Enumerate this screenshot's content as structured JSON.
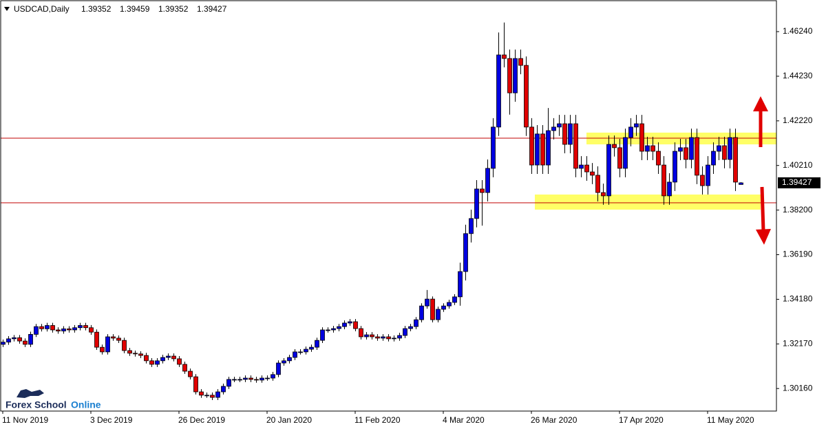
{
  "chart_data": {
    "type": "candlestick",
    "title": "USDCAD,Daily",
    "categories": [
      "11 Nov 2019",
      null,
      null,
      null,
      null,
      null,
      null,
      null,
      null,
      null,
      null,
      null,
      null,
      null,
      null,
      null,
      "3 Dec 2019",
      null,
      null,
      null,
      null,
      null,
      null,
      null,
      null,
      null,
      null,
      null,
      null,
      null,
      null,
      null,
      "26 Dec 2019",
      null,
      null,
      null,
      null,
      null,
      null,
      null,
      null,
      null,
      null,
      null,
      null,
      null,
      null,
      null,
      "20 Jan 2020",
      null,
      null,
      null,
      null,
      null,
      null,
      null,
      null,
      null,
      null,
      null,
      null,
      null,
      null,
      null,
      "11 Feb 2020",
      null,
      null,
      null,
      null,
      null,
      null,
      null,
      null,
      null,
      null,
      null,
      null,
      null,
      null,
      null,
      "4 Mar 2020",
      null,
      null,
      null,
      null,
      null,
      null,
      null,
      null,
      null,
      null,
      null,
      null,
      null,
      null,
      null,
      "26 Mar 2020",
      null,
      null,
      null,
      null,
      null,
      null,
      null,
      null,
      null,
      null,
      null,
      null,
      null,
      null,
      null,
      "17 Apr 2020",
      null,
      null,
      null,
      null,
      null,
      null,
      null,
      null,
      null,
      null,
      null,
      null,
      null,
      null,
      null,
      "11 May 2020",
      null,
      null,
      null,
      null,
      null,
      null
    ],
    "open": [
      1.3215,
      1.3225,
      1.324,
      1.3245,
      1.323,
      1.3215,
      1.326,
      1.3295,
      1.3285,
      1.33,
      1.328,
      1.3275,
      1.3285,
      1.328,
      1.329,
      1.33,
      1.329,
      1.327,
      1.3202,
      1.3181,
      1.3249,
      1.3243,
      1.3233,
      1.3187,
      1.3175,
      1.3172,
      1.3165,
      1.3141,
      1.3125,
      1.3141,
      1.3156,
      1.3162,
      1.315,
      1.3125,
      1.3094,
      1.3069,
      1.3001,
      1.2986,
      1.2986,
      1.2976,
      1.3001,
      1.3026,
      1.3057,
      1.3057,
      1.3057,
      1.3063,
      1.3057,
      1.3054,
      1.3063,
      1.3063,
      1.3079,
      1.3131,
      1.3141,
      1.3156,
      1.3181,
      1.3181,
      1.3193,
      1.3202,
      1.3233,
      1.328,
      1.328,
      1.3286,
      1.3295,
      1.3311,
      1.3317,
      1.3286,
      1.3249,
      1.3258,
      1.3249,
      1.3243,
      1.3249,
      1.324,
      1.3243,
      1.3255,
      1.3286,
      1.3295,
      1.3326,
      1.3388,
      1.3419,
      1.3326,
      1.3373,
      1.3388,
      1.3404,
      1.3429,
      1.3543,
      1.3714,
      1.3782,
      1.3915,
      1.3899,
      1.4008,
      1.4194,
      1.4519,
      1.4503,
      1.4348,
      1.4503,
      1.4472,
      1.4194,
      1.4023,
      1.4163,
      1.4023,
      1.4178,
      1.4194,
      1.4209,
      1.4116,
      1.4209,
      1.4008,
      1.4023,
      1.3992,
      1.3977,
      1.3899,
      1.3884,
      1.4116,
      1.4101,
      1.4008,
      1.4147,
      1.4194,
      1.4209,
      1.4085,
      1.411,
      1.4085,
      1.4023,
      1.3884,
      1.3946,
      1.4085,
      1.4101,
      1.4048,
      1.4147,
      1.3977,
      1.393,
      1.4023,
      1.4085,
      1.411,
      1.4048,
      1.4147,
      1.39352
    ],
    "high": [
      1.3237,
      1.3252,
      1.3257,
      1.3257,
      1.3242,
      1.3272,
      1.3307,
      1.3307,
      1.3312,
      1.3312,
      1.3292,
      1.3297,
      1.3297,
      1.3302,
      1.3312,
      1.3312,
      1.3302,
      1.3282,
      1.3214,
      1.3261,
      1.3261,
      1.3255,
      1.3245,
      1.3199,
      1.3187,
      1.3184,
      1.3177,
      1.3153,
      1.3153,
      1.3168,
      1.3174,
      1.3174,
      1.3162,
      1.3137,
      1.3106,
      1.3081,
      1.3013,
      1.2998,
      1.2998,
      1.3013,
      1.3038,
      1.3069,
      1.3069,
      1.3069,
      1.3075,
      1.3075,
      1.3069,
      1.3075,
      1.3075,
      1.3091,
      1.3143,
      1.3153,
      1.3168,
      1.3193,
      1.3193,
      1.3205,
      1.3214,
      1.3245,
      1.3292,
      1.3292,
      1.3298,
      1.3307,
      1.3323,
      1.3329,
      1.3329,
      1.3298,
      1.327,
      1.327,
      1.3261,
      1.3261,
      1.3261,
      1.3255,
      1.3267,
      1.3298,
      1.3307,
      1.3338,
      1.34,
      1.346,
      1.3431,
      1.3385,
      1.34,
      1.3416,
      1.3441,
      1.3583,
      1.3754,
      1.3822,
      1.3955,
      1.3955,
      1.4048,
      1.4234,
      1.462,
      1.4665,
      1.4543,
      1.4543,
      1.4543,
      1.4512,
      1.4234,
      1.4203,
      1.4203,
      1.428,
      1.4234,
      1.4249,
      1.4249,
      1.4249,
      1.4249,
      1.4063,
      1.4063,
      1.4032,
      1.4017,
      1.3939,
      1.4156,
      1.4156,
      1.4141,
      1.4187,
      1.4234,
      1.4249,
      1.4249,
      1.415,
      1.415,
      1.4125,
      1.4063,
      1.3986,
      1.4125,
      1.4141,
      1.4141,
      1.4187,
      1.4187,
      1.4017,
      1.4063,
      1.4125,
      1.415,
      1.415,
      1.4187,
      1.4187,
      1.39459
    ],
    "low": [
      1.3203,
      1.3213,
      1.3228,
      1.3218,
      1.3203,
      1.3203,
      1.3248,
      1.3273,
      1.3273,
      1.3268,
      1.3263,
      1.3263,
      1.3268,
      1.3268,
      1.3278,
      1.3278,
      1.3258,
      1.319,
      1.3169,
      1.3169,
      1.3231,
      1.3221,
      1.3175,
      1.3163,
      1.316,
      1.3153,
      1.3129,
      1.3113,
      1.3113,
      1.3129,
      1.3144,
      1.3138,
      1.3113,
      1.3082,
      1.3057,
      1.2989,
      1.2974,
      1.2974,
      1.2964,
      1.2964,
      1.2989,
      1.3014,
      1.3045,
      1.3045,
      1.3045,
      1.3045,
      1.3042,
      1.3042,
      1.3051,
      1.3051,
      1.3067,
      1.3119,
      1.3129,
      1.3144,
      1.3169,
      1.3169,
      1.3181,
      1.319,
      1.3221,
      1.3268,
      1.3268,
      1.3274,
      1.3283,
      1.3299,
      1.3274,
      1.3237,
      1.3237,
      1.3237,
      1.3231,
      1.3231,
      1.3228,
      1.3228,
      1.3231,
      1.3243,
      1.3274,
      1.3283,
      1.3314,
      1.3376,
      1.3314,
      1.3314,
      1.3361,
      1.3376,
      1.3392,
      1.3389,
      1.3503,
      1.3674,
      1.3742,
      1.375,
      1.3859,
      1.3968,
      1.4154,
      1.4463,
      1.425,
      1.4308,
      1.4432,
      1.4154,
      1.3983,
      1.3983,
      1.3983,
      1.3983,
      1.4138,
      1.4154,
      1.4076,
      1.4076,
      1.3968,
      1.3968,
      1.3952,
      1.3937,
      1.3859,
      1.3844,
      1.3844,
      1.4061,
      1.3968,
      1.3968,
      1.4107,
      1.4154,
      1.4045,
      1.4045,
      1.4045,
      1.3983,
      1.3844,
      1.3844,
      1.3906,
      1.4045,
      1.4008,
      1.4008,
      1.3937,
      1.389,
      1.389,
      1.3983,
      1.4045,
      1.4008,
      1.4008,
      1.3906,
      1.39352
    ],
    "close": [
      1.3225,
      1.324,
      1.3245,
      1.323,
      1.3215,
      1.326,
      1.3295,
      1.3285,
      1.33,
      1.328,
      1.3275,
      1.3285,
      1.328,
      1.329,
      1.33,
      1.329,
      1.327,
      1.3202,
      1.3181,
      1.3249,
      1.3243,
      1.3233,
      1.3187,
      1.3175,
      1.3172,
      1.3165,
      1.3141,
      1.3125,
      1.3141,
      1.3156,
      1.3162,
      1.315,
      1.3125,
      1.3094,
      1.3069,
      1.3001,
      1.2986,
      1.2986,
      1.2976,
      1.3001,
      1.3026,
      1.3057,
      1.3057,
      1.3057,
      1.3063,
      1.3057,
      1.3054,
      1.3063,
      1.3063,
      1.3079,
      1.3131,
      1.3141,
      1.3156,
      1.3181,
      1.3181,
      1.3193,
      1.3202,
      1.3233,
      1.328,
      1.328,
      1.3286,
      1.3295,
      1.3311,
      1.3317,
      1.3286,
      1.3249,
      1.3258,
      1.3249,
      1.3243,
      1.3249,
      1.324,
      1.3243,
      1.3255,
      1.3286,
      1.3295,
      1.3326,
      1.3388,
      1.3419,
      1.3326,
      1.3373,
      1.3388,
      1.3404,
      1.3429,
      1.3543,
      1.3714,
      1.3782,
      1.3915,
      1.3899,
      1.4008,
      1.4194,
      1.4519,
      1.4503,
      1.4348,
      1.4503,
      1.4472,
      1.4194,
      1.4023,
      1.4163,
      1.4023,
      1.4178,
      1.4194,
      1.4209,
      1.4116,
      1.4209,
      1.4008,
      1.4023,
      1.3992,
      1.3977,
      1.3899,
      1.3884,
      1.4116,
      1.4101,
      1.4008,
      1.4147,
      1.4194,
      1.4209,
      1.4085,
      1.411,
      1.4085,
      1.4023,
      1.3884,
      1.3946,
      1.4085,
      1.4101,
      1.4048,
      1.4147,
      1.3977,
      1.393,
      1.4023,
      1.4085,
      1.411,
      1.4048,
      1.4147,
      1.3946,
      1.39427
    ],
    "up_color": "#0000e0",
    "down_color": "#e00000",
    "ylim": [
      1.29144,
      1.47665
    ],
    "yticks": [
      {
        "value": 1.3016,
        "label": "1.30160"
      },
      {
        "value": 1.3217,
        "label": "1.32170"
      },
      {
        "value": 1.3418,
        "label": "1.34180"
      },
      {
        "value": 1.3619,
        "label": "1.36190"
      },
      {
        "value": 1.382,
        "label": "1.38200"
      },
      {
        "value": 1.4021,
        "label": "1.40210"
      },
      {
        "value": 1.4222,
        "label": "1.42220"
      },
      {
        "value": 1.4423,
        "label": "1.44230"
      },
      {
        "value": 1.4624,
        "label": "1.46240"
      }
    ],
    "levels": [
      1.4144,
      1.3853
    ],
    "level_color": "#c00000",
    "zones": [
      [
        1.4116,
        1.4169
      ],
      [
        1.3822,
        1.389
      ]
    ],
    "zone_color": "#ffff66"
  },
  "logo": {
    "part1": "Forex School",
    "part2": "Online"
  }
}
